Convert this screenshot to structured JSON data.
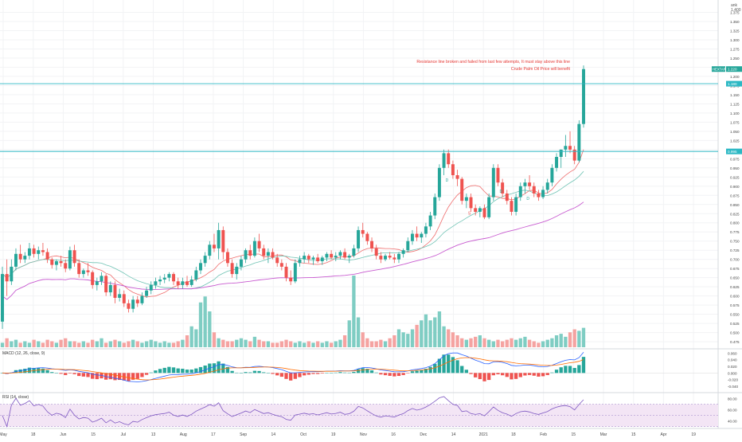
{
  "header": {
    "corner": [
      "ank",
      "1.400"
    ]
  },
  "colors": {
    "up": "#26a69a",
    "up_fill": "#7fcdc3",
    "down": "#ef5350",
    "down_fill": "#f5a3a1",
    "ma_fast": "#ef6c6c",
    "ma_slow": "#6fc3b4",
    "ma_long": "#c85bd0",
    "hline": "#2cb8c4",
    "annotation": "#e53935",
    "macd_line": "#2962ff",
    "signal_line": "#ff6d00",
    "rsi_line": "#7e57c2",
    "rsi_band": "#f3e5f5"
  },
  "annotation": {
    "line1": "Resistance line broken and failed from last few attempts, It must stay above this line",
    "line2": "Crude Palm Oil Price will benefit"
  },
  "price_tags": {
    "ticker_label": "HEXTAR",
    "last_price": "1.220",
    "resistance_upper": "1.180",
    "resistance_lower": "0.995"
  },
  "macd_panel": {
    "label": "MACD (12, 26, close, 9)"
  },
  "rsi_panel": {
    "label": "RSI (14, close)"
  },
  "markers": [
    "D",
    "S",
    "D",
    "D"
  ],
  "chart_data": {
    "type": "candlestick",
    "main": {
      "y_ticks": [
        "1.375",
        "1.350",
        "1.325",
        "1.300",
        "1.275",
        "1.250",
        "1.225",
        "1.200",
        "1.175",
        "1.150",
        "1.125",
        "1.100",
        "1.075",
        "1.050",
        "1.025",
        "1.000",
        "0.975",
        "0.950",
        "0.925",
        "0.900",
        "0.875",
        "0.850",
        "0.825",
        "0.800",
        "0.775",
        "0.750",
        "0.725",
        "0.700",
        "0.675",
        "0.650",
        "0.625",
        "0.600",
        "0.575",
        "0.550",
        "0.525",
        "0.500",
        "0.475"
      ],
      "ylim": [
        0.46,
        1.4
      ],
      "horizontal_lines": [
        1.18,
        0.995
      ],
      "last_price": 1.22
    },
    "x_ticks": [
      "May",
      "18",
      "Jun",
      "15",
      "Jul",
      "13",
      "Aug",
      "17",
      "Sep",
      "14",
      "Oct",
      "19",
      "Nov",
      "16",
      "Dec",
      "14",
      "2021",
      "18",
      "Feb",
      "15",
      "Mar",
      "15",
      "Apr",
      "19"
    ],
    "macd": {
      "y_ticks": [
        "0.060",
        "0.040",
        "0.020",
        "0.000",
        "-0.020",
        "-0.040"
      ],
      "ylim": [
        -0.052,
        0.068
      ]
    },
    "rsi": {
      "y_ticks": [
        "80.00",
        "60.00",
        "40.00"
      ],
      "ylim": [
        28,
        88
      ],
      "band": [
        30,
        70
      ]
    },
    "series": [
      {
        "name": "price",
        "open": 0.66,
        "high": 0.7,
        "low": 0.5,
        "close": 0.52
      },
      {
        "name": "price",
        "open": 0.52,
        "high": 0.6,
        "low": 0.5,
        "close": 0.58
      }
    ],
    "candles": [
      [
        0.53,
        0.68,
        0.51,
        0.66
      ],
      [
        0.66,
        0.7,
        0.6,
        0.64
      ],
      [
        0.64,
        0.7,
        0.63,
        0.68
      ],
      [
        0.68,
        0.73,
        0.67,
        0.715
      ],
      [
        0.715,
        0.74,
        0.69,
        0.7
      ],
      [
        0.7,
        0.72,
        0.69,
        0.71
      ],
      [
        0.71,
        0.745,
        0.7,
        0.73
      ],
      [
        0.73,
        0.74,
        0.705,
        0.715
      ],
      [
        0.715,
        0.735,
        0.7,
        0.725
      ],
      [
        0.725,
        0.745,
        0.71,
        0.72
      ],
      [
        0.72,
        0.73,
        0.69,
        0.7
      ],
      [
        0.7,
        0.705,
        0.675,
        0.685
      ],
      [
        0.685,
        0.7,
        0.67,
        0.695
      ],
      [
        0.695,
        0.71,
        0.68,
        0.69
      ],
      [
        0.69,
        0.7,
        0.665,
        0.675
      ],
      [
        0.675,
        0.735,
        0.67,
        0.725
      ],
      [
        0.725,
        0.74,
        0.68,
        0.69
      ],
      [
        0.69,
        0.7,
        0.65,
        0.66
      ],
      [
        0.66,
        0.675,
        0.65,
        0.67
      ],
      [
        0.67,
        0.69,
        0.655,
        0.665
      ],
      [
        0.665,
        0.67,
        0.62,
        0.63
      ],
      [
        0.63,
        0.65,
        0.615,
        0.64
      ],
      [
        0.64,
        0.665,
        0.63,
        0.655
      ],
      [
        0.655,
        0.66,
        0.6,
        0.61
      ],
      [
        0.61,
        0.64,
        0.6,
        0.63
      ],
      [
        0.63,
        0.64,
        0.58,
        0.595
      ],
      [
        0.595,
        0.62,
        0.585,
        0.605
      ],
      [
        0.605,
        0.615,
        0.57,
        0.58
      ],
      [
        0.58,
        0.59,
        0.555,
        0.565
      ],
      [
        0.565,
        0.6,
        0.555,
        0.59
      ],
      [
        0.59,
        0.6,
        0.57,
        0.58
      ],
      [
        0.58,
        0.61,
        0.575,
        0.6
      ],
      [
        0.6,
        0.625,
        0.595,
        0.615
      ],
      [
        0.615,
        0.64,
        0.605,
        0.63
      ],
      [
        0.63,
        0.65,
        0.62,
        0.64
      ],
      [
        0.64,
        0.655,
        0.63,
        0.645
      ],
      [
        0.645,
        0.66,
        0.635,
        0.65
      ],
      [
        0.65,
        0.665,
        0.64,
        0.66
      ],
      [
        0.66,
        0.665,
        0.63,
        0.64
      ],
      [
        0.64,
        0.65,
        0.62,
        0.63
      ],
      [
        0.63,
        0.65,
        0.62,
        0.64
      ],
      [
        0.64,
        0.655,
        0.625,
        0.63
      ],
      [
        0.63,
        0.655,
        0.625,
        0.645
      ],
      [
        0.645,
        0.68,
        0.64,
        0.67
      ],
      [
        0.67,
        0.7,
        0.66,
        0.69
      ],
      [
        0.69,
        0.72,
        0.68,
        0.71
      ],
      [
        0.71,
        0.75,
        0.7,
        0.74
      ],
      [
        0.74,
        0.77,
        0.72,
        0.73
      ],
      [
        0.73,
        0.8,
        0.7,
        0.78
      ],
      [
        0.78,
        0.79,
        0.7,
        0.72
      ],
      [
        0.72,
        0.73,
        0.68,
        0.69
      ],
      [
        0.69,
        0.7,
        0.65,
        0.66
      ],
      [
        0.66,
        0.69,
        0.645,
        0.68
      ],
      [
        0.68,
        0.71,
        0.67,
        0.7
      ],
      [
        0.7,
        0.73,
        0.69,
        0.725
      ],
      [
        0.725,
        0.74,
        0.7,
        0.71
      ],
      [
        0.71,
        0.76,
        0.705,
        0.75
      ],
      [
        0.75,
        0.77,
        0.72,
        0.73
      ],
      [
        0.73,
        0.74,
        0.7,
        0.71
      ],
      [
        0.71,
        0.73,
        0.69,
        0.72
      ],
      [
        0.72,
        0.73,
        0.7,
        0.705
      ],
      [
        0.705,
        0.715,
        0.68,
        0.69
      ],
      [
        0.69,
        0.7,
        0.67,
        0.68
      ],
      [
        0.68,
        0.69,
        0.64,
        0.65
      ],
      [
        0.65,
        0.67,
        0.63,
        0.64
      ],
      [
        0.64,
        0.7,
        0.635,
        0.69
      ],
      [
        0.69,
        0.71,
        0.68,
        0.7
      ],
      [
        0.7,
        0.72,
        0.69,
        0.71
      ],
      [
        0.71,
        0.715,
        0.69,
        0.7
      ],
      [
        0.7,
        0.71,
        0.685,
        0.705
      ],
      [
        0.705,
        0.715,
        0.69,
        0.695
      ],
      [
        0.695,
        0.71,
        0.685,
        0.705
      ],
      [
        0.705,
        0.72,
        0.695,
        0.715
      ],
      [
        0.715,
        0.725,
        0.7,
        0.705
      ],
      [
        0.705,
        0.72,
        0.695,
        0.71
      ],
      [
        0.71,
        0.725,
        0.7,
        0.72
      ],
      [
        0.72,
        0.73,
        0.7,
        0.705
      ],
      [
        0.705,
        0.715,
        0.69,
        0.71
      ],
      [
        0.71,
        0.74,
        0.705,
        0.73
      ],
      [
        0.73,
        0.79,
        0.72,
        0.78
      ],
      [
        0.78,
        0.8,
        0.76,
        0.77
      ],
      [
        0.77,
        0.775,
        0.74,
        0.75
      ],
      [
        0.75,
        0.76,
        0.72,
        0.73
      ],
      [
        0.73,
        0.74,
        0.7,
        0.71
      ],
      [
        0.71,
        0.72,
        0.69,
        0.7
      ],
      [
        0.7,
        0.715,
        0.695,
        0.71
      ],
      [
        0.71,
        0.72,
        0.7,
        0.705
      ],
      [
        0.705,
        0.715,
        0.69,
        0.7
      ],
      [
        0.7,
        0.72,
        0.69,
        0.715
      ],
      [
        0.715,
        0.73,
        0.705,
        0.725
      ],
      [
        0.725,
        0.76,
        0.72,
        0.75
      ],
      [
        0.75,
        0.78,
        0.74,
        0.77
      ],
      [
        0.77,
        0.79,
        0.75,
        0.76
      ],
      [
        0.76,
        0.775,
        0.745,
        0.77
      ],
      [
        0.77,
        0.8,
        0.76,
        0.79
      ],
      [
        0.79,
        0.83,
        0.78,
        0.82
      ],
      [
        0.82,
        0.88,
        0.81,
        0.87
      ],
      [
        0.87,
        0.96,
        0.86,
        0.95
      ],
      [
        0.95,
        1.0,
        0.93,
        0.99
      ],
      [
        0.99,
        1.0,
        0.95,
        0.96
      ],
      [
        0.96,
        0.97,
        0.92,
        0.93
      ],
      [
        0.93,
        0.945,
        0.9,
        0.92
      ],
      [
        0.92,
        0.925,
        0.85,
        0.86
      ],
      [
        0.86,
        0.88,
        0.84,
        0.87
      ],
      [
        0.87,
        0.88,
        0.83,
        0.84
      ],
      [
        0.84,
        0.85,
        0.82,
        0.83
      ],
      [
        0.83,
        0.845,
        0.815,
        0.84
      ],
      [
        0.84,
        0.85,
        0.81,
        0.815
      ],
      [
        0.815,
        0.88,
        0.81,
        0.87
      ],
      [
        0.87,
        0.96,
        0.86,
        0.95
      ],
      [
        0.95,
        0.96,
        0.9,
        0.91
      ],
      [
        0.91,
        0.92,
        0.87,
        0.88
      ],
      [
        0.88,
        0.89,
        0.85,
        0.86
      ],
      [
        0.86,
        0.87,
        0.82,
        0.83
      ],
      [
        0.83,
        0.88,
        0.82,
        0.87
      ],
      [
        0.87,
        0.91,
        0.86,
        0.9
      ],
      [
        0.9,
        0.92,
        0.88,
        0.91
      ],
      [
        0.91,
        0.93,
        0.89,
        0.9
      ],
      [
        0.9,
        0.91,
        0.87,
        0.88
      ],
      [
        0.88,
        0.89,
        0.86,
        0.87
      ],
      [
        0.87,
        0.9,
        0.865,
        0.89
      ],
      [
        0.89,
        0.92,
        0.88,
        0.91
      ],
      [
        0.91,
        0.96,
        0.9,
        0.95
      ],
      [
        0.95,
        0.99,
        0.94,
        0.98
      ],
      [
        0.98,
        1.0,
        0.95,
        1.0
      ],
      [
        1.0,
        1.04,
        0.98,
        1.01
      ],
      [
        1.01,
        1.05,
        0.99,
        1.0
      ],
      [
        1.0,
        1.01,
        0.96,
        0.97
      ],
      [
        0.97,
        1.08,
        0.965,
        1.07
      ],
      [
        1.07,
        1.23,
        1.06,
        1.22
      ]
    ],
    "volume": [
      0.03,
      0.06,
      0.04,
      0.05,
      0.03,
      0.04,
      0.03,
      0.05,
      0.04,
      0.03,
      0.05,
      0.04,
      0.03,
      0.05,
      0.06,
      0.04,
      0.04,
      0.03,
      0.04,
      0.03,
      0.05,
      0.04,
      0.06,
      0.03,
      0.04,
      0.05,
      0.04,
      0.03,
      0.04,
      0.05,
      0.04,
      0.03,
      0.04,
      0.05,
      0.04,
      0.03,
      0.04,
      0.03,
      0.03,
      0.04,
      0.05,
      0.08,
      0.14,
      0.12,
      0.3,
      0.34,
      0.24,
      0.1,
      0.06,
      0.05,
      0.04,
      0.04,
      0.05,
      0.06,
      0.05,
      0.04,
      0.07,
      0.05,
      0.04,
      0.04,
      0.03,
      0.03,
      0.04,
      0.05,
      0.04,
      0.03,
      0.04,
      0.03,
      0.04,
      0.03,
      0.04,
      0.03,
      0.04,
      0.03,
      0.04,
      0.05,
      0.08,
      0.18,
      0.48,
      0.2,
      0.1,
      0.06,
      0.04,
      0.04,
      0.05,
      0.04,
      0.06,
      0.08,
      0.12,
      0.1,
      0.09,
      0.12,
      0.15,
      0.18,
      0.22,
      0.18,
      0.2,
      0.24,
      0.14,
      0.12,
      0.1,
      0.08,
      0.06,
      0.05,
      0.06,
      0.07,
      0.08,
      0.06,
      0.05,
      0.04,
      0.05,
      0.04,
      0.05,
      0.06,
      0.05,
      0.06,
      0.07,
      0.05,
      0.04,
      0.03,
      0.04,
      0.05,
      0.06,
      0.08,
      0.09,
      0.07,
      0.1,
      0.12,
      0.11,
      0.13
    ]
  }
}
